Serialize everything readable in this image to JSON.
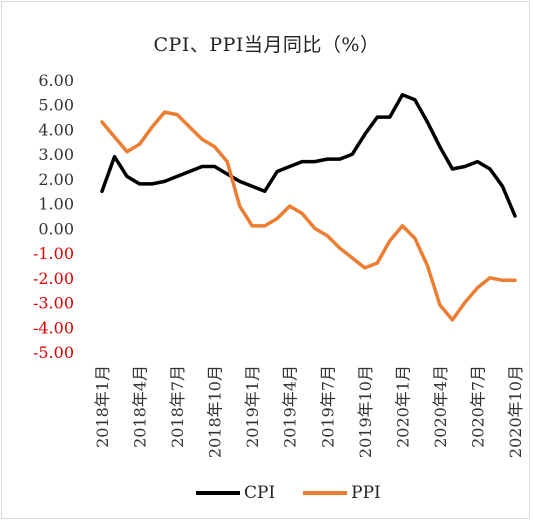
{
  "chart_data": {
    "type": "line",
    "title": "CPI、PPI当月同比（%）",
    "x": [
      "2018年1月",
      "2018年2月",
      "2018年3月",
      "2018年4月",
      "2018年5月",
      "2018年6月",
      "2018年7月",
      "2018年8月",
      "2018年9月",
      "2018年10月",
      "2018年11月",
      "2018年12月",
      "2019年1月",
      "2019年2月",
      "2019年3月",
      "2019年4月",
      "2019年5月",
      "2019年6月",
      "2019年7月",
      "2019年8月",
      "2019年9月",
      "2019年10月",
      "2019年11月",
      "2019年12月",
      "2020年1月",
      "2020年2月",
      "2020年3月",
      "2020年4月",
      "2020年5月",
      "2020年6月",
      "2020年7月",
      "2020年8月",
      "2020年9月",
      "2020年10月"
    ],
    "x_tick_labels": [
      "2018年1月",
      "2018年4月",
      "2018年7月",
      "2018年10月",
      "2019年1月",
      "2019年4月",
      "2019年7月",
      "2019年10月",
      "2020年1月",
      "2020年4月",
      "2020年7月",
      "2020年10月"
    ],
    "ylim": [
      -5,
      6
    ],
    "y_ticks": [
      {
        "value": 6,
        "label": "6.00"
      },
      {
        "value": 5,
        "label": "5.00"
      },
      {
        "value": 4,
        "label": "4.00"
      },
      {
        "value": 3,
        "label": "3.00"
      },
      {
        "value": 2,
        "label": "2.00"
      },
      {
        "value": 1,
        "label": "1.00"
      },
      {
        "value": 0,
        "label": "0.00"
      },
      {
        "value": -1,
        "label": "-1.00"
      },
      {
        "value": -2,
        "label": "-2.00"
      },
      {
        "value": -3,
        "label": "-3.00"
      },
      {
        "value": -4,
        "label": "-4.00"
      },
      {
        "value": -5,
        "label": "-5.00"
      }
    ],
    "negative_tick_color": "#e00000",
    "positive_tick_color": "#333333",
    "grid": false,
    "legend_position": "bottom",
    "series": [
      {
        "name": "CPI",
        "color": "#000000",
        "values": [
          1.5,
          2.9,
          2.1,
          1.8,
          1.8,
          1.9,
          2.1,
          2.3,
          2.5,
          2.5,
          2.2,
          1.9,
          1.7,
          1.5,
          2.3,
          2.5,
          2.7,
          2.7,
          2.8,
          2.8,
          3.0,
          3.8,
          4.5,
          4.5,
          5.4,
          5.2,
          4.3,
          3.3,
          2.4,
          2.5,
          2.7,
          2.4,
          1.7,
          0.5
        ]
      },
      {
        "name": "PPI",
        "color": "#ed7d31",
        "values": [
          4.3,
          3.7,
          3.1,
          3.4,
          4.1,
          4.7,
          4.6,
          4.1,
          3.6,
          3.3,
          2.7,
          0.9,
          0.1,
          0.1,
          0.4,
          0.9,
          0.6,
          0.0,
          -0.3,
          -0.8,
          -1.2,
          -1.6,
          -1.4,
          -0.5,
          0.1,
          -0.4,
          -1.5,
          -3.1,
          -3.7,
          -3.0,
          -2.4,
          -2.0,
          -2.1,
          -2.1
        ]
      }
    ]
  }
}
